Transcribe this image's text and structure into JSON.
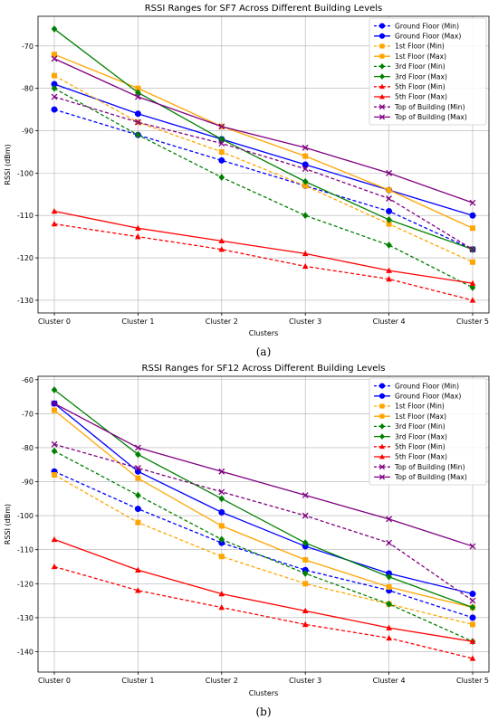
{
  "chart_data": [
    {
      "type": "line",
      "title": "RSSI Ranges for SF7 Across Different Building Levels",
      "panel_label": "(a)",
      "xlabel": "Clusters",
      "ylabel": "RSSI (dBm)",
      "categories": [
        "Cluster 0",
        "Cluster 1",
        "Cluster 2",
        "Cluster 3",
        "Cluster 4",
        "Cluster 5"
      ],
      "ylim": [
        -133,
        -63
      ],
      "yticks": [
        -130,
        -120,
        -110,
        -100,
        -90,
        -80,
        -70
      ],
      "grid": true,
      "legend_position": "top-right",
      "series": [
        {
          "name": "Ground Floor (Min)",
          "color": "#0000ff",
          "marker": "circle",
          "dashed": true,
          "values": [
            -85,
            -91,
            -97,
            -103,
            -109,
            -118
          ]
        },
        {
          "name": "Ground Floor (Max)",
          "color": "#0000ff",
          "marker": "circle",
          "dashed": false,
          "values": [
            -79,
            -86,
            -92,
            -98,
            -104,
            -110
          ]
        },
        {
          "name": "1st Floor (Min)",
          "color": "#ffa500",
          "marker": "square",
          "dashed": true,
          "values": [
            -77,
            -88,
            -95,
            -103,
            -112,
            -121
          ]
        },
        {
          "name": "1st Floor (Max)",
          "color": "#ffa500",
          "marker": "square",
          "dashed": false,
          "values": [
            -72,
            -80,
            -89,
            -96,
            -104,
            -113
          ]
        },
        {
          "name": "3rd Floor (Min)",
          "color": "#008000",
          "marker": "diamond",
          "dashed": true,
          "values": [
            -80,
            -91,
            -101,
            -110,
            -117,
            -127
          ]
        },
        {
          "name": "3rd Floor (Max)",
          "color": "#008000",
          "marker": "diamond",
          "dashed": false,
          "values": [
            -66,
            -81,
            -92,
            -102,
            -111,
            -118
          ]
        },
        {
          "name": "5th Floor (Min)",
          "color": "#ff0000",
          "marker": "triangle",
          "dashed": true,
          "values": [
            -112,
            -115,
            -118,
            -122,
            -125,
            -130
          ]
        },
        {
          "name": "5th Floor (Max)",
          "color": "#ff0000",
          "marker": "triangle",
          "dashed": false,
          "values": [
            -109,
            -113,
            -116,
            -119,
            -123,
            -126
          ]
        },
        {
          "name": "Top of Building (Min)",
          "color": "#800080",
          "marker": "x",
          "dashed": true,
          "values": [
            -82,
            -88,
            -93,
            -99,
            -106,
            -118
          ]
        },
        {
          "name": "Top of Building (Max)",
          "color": "#800080",
          "marker": "x",
          "dashed": false,
          "values": [
            -73,
            -82,
            -89,
            -94,
            -100,
            -107
          ]
        }
      ]
    },
    {
      "type": "line",
      "title": "RSSI Ranges for SF12 Across Different Building Levels",
      "panel_label": "(b)",
      "xlabel": "Clusters",
      "ylabel": "RSSI (dBm)",
      "categories": [
        "Cluster 0",
        "Cluster 1",
        "Cluster 2",
        "Cluster 3",
        "Cluster 4",
        "Cluster 5"
      ],
      "ylim": [
        -146,
        -59
      ],
      "yticks": [
        -140,
        -130,
        -120,
        -110,
        -100,
        -90,
        -80,
        -70,
        -60
      ],
      "grid": true,
      "legend_position": "top-right",
      "series": [
        {
          "name": "Ground Floor (Min)",
          "color": "#0000ff",
          "marker": "circle",
          "dashed": true,
          "values": [
            -87,
            -98,
            -108,
            -116,
            -122,
            -130
          ]
        },
        {
          "name": "Ground Floor (Max)",
          "color": "#0000ff",
          "marker": "circle",
          "dashed": false,
          "values": [
            -67,
            -87,
            -99,
            -109,
            -117,
            -123
          ]
        },
        {
          "name": "1st Floor (Min)",
          "color": "#ffa500",
          "marker": "square",
          "dashed": true,
          "values": [
            -88,
            -102,
            -112,
            -120,
            -126,
            -132
          ]
        },
        {
          "name": "1st Floor (Max)",
          "color": "#ffa500",
          "marker": "square",
          "dashed": false,
          "values": [
            -69,
            -89,
            -103,
            -113,
            -121,
            -127
          ]
        },
        {
          "name": "3rd Floor (Min)",
          "color": "#008000",
          "marker": "diamond",
          "dashed": true,
          "values": [
            -81,
            -94,
            -107,
            -117,
            -126,
            -137
          ]
        },
        {
          "name": "3rd Floor (Max)",
          "color": "#008000",
          "marker": "diamond",
          "dashed": false,
          "values": [
            -63,
            -82,
            -95,
            -108,
            -118,
            -127
          ]
        },
        {
          "name": "5th Floor (Min)",
          "color": "#ff0000",
          "marker": "triangle",
          "dashed": true,
          "values": [
            -115,
            -122,
            -127,
            -132,
            -136,
            -142
          ]
        },
        {
          "name": "5th Floor (Max)",
          "color": "#ff0000",
          "marker": "triangle",
          "dashed": false,
          "values": [
            -107,
            -116,
            -123,
            -128,
            -133,
            -137
          ]
        },
        {
          "name": "Top of Building (Min)",
          "color": "#800080",
          "marker": "x",
          "dashed": true,
          "values": [
            -79,
            -86,
            -93,
            -100,
            -108,
            -125
          ]
        },
        {
          "name": "Top of Building (Max)",
          "color": "#800080",
          "marker": "x",
          "dashed": false,
          "values": [
            -67,
            -80,
            -87,
            -94,
            -101,
            -109
          ]
        }
      ]
    }
  ]
}
